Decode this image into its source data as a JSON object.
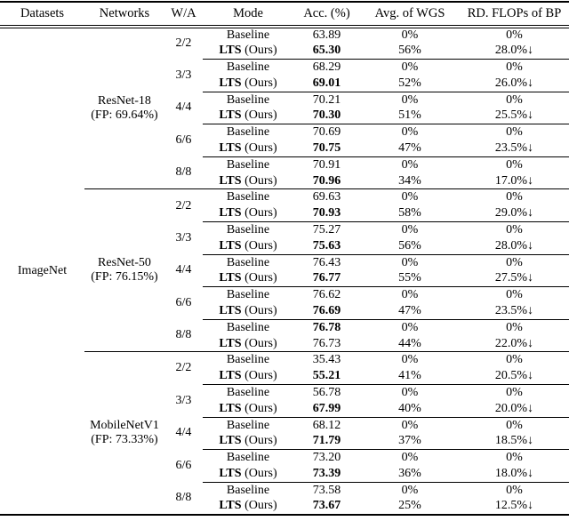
{
  "colors": {
    "background": "#ffffff",
    "text": "#000000",
    "rule": "#000000"
  },
  "table": {
    "header": [
      "Datasets",
      "Networks",
      "W/A",
      "Mode",
      "Acc. (%)",
      "Avg. of WGS",
      "RD. FLOPs of BP"
    ],
    "dataset": "ImageNet",
    "networks": [
      {
        "name": "ResNet-18",
        "fp": "(FP: 69.64%)",
        "groups": [
          {
            "wa": "2/2",
            "rows": [
              {
                "mode_bold": "",
                "mode_rest": "Baseline",
                "acc": "63.89",
                "acc_bold": false,
                "wgs": "0%",
                "flops": "0%"
              },
              {
                "mode_bold": "LTS",
                "mode_rest": " (Ours)",
                "acc": "65.30",
                "acc_bold": true,
                "wgs": "56%",
                "flops": "28.0%↓"
              }
            ]
          },
          {
            "wa": "3/3",
            "rows": [
              {
                "mode_bold": "",
                "mode_rest": "Baseline",
                "acc": "68.29",
                "acc_bold": false,
                "wgs": "0%",
                "flops": "0%"
              },
              {
                "mode_bold": "LTS",
                "mode_rest": " (Ours)",
                "acc": "69.01",
                "acc_bold": true,
                "wgs": "52%",
                "flops": "26.0%↓"
              }
            ]
          },
          {
            "wa": "4/4",
            "rows": [
              {
                "mode_bold": "",
                "mode_rest": "Baseline",
                "acc": "70.21",
                "acc_bold": false,
                "wgs": "0%",
                "flops": "0%"
              },
              {
                "mode_bold": "LTS",
                "mode_rest": " (Ours)",
                "acc": "70.30",
                "acc_bold": true,
                "wgs": "51%",
                "flops": "25.5%↓"
              }
            ]
          },
          {
            "wa": "6/6",
            "rows": [
              {
                "mode_bold": "",
                "mode_rest": "Baseline",
                "acc": "70.69",
                "acc_bold": false,
                "wgs": "0%",
                "flops": "0%"
              },
              {
                "mode_bold": "LTS",
                "mode_rest": " (Ours)",
                "acc": "70.75",
                "acc_bold": true,
                "wgs": "47%",
                "flops": "23.5%↓"
              }
            ]
          },
          {
            "wa": "8/8",
            "rows": [
              {
                "mode_bold": "",
                "mode_rest": "Baseline",
                "acc": "70.91",
                "acc_bold": false,
                "wgs": "0%",
                "flops": "0%"
              },
              {
                "mode_bold": "LTS",
                "mode_rest": " (Ours)",
                "acc": "70.96",
                "acc_bold": true,
                "wgs": "34%",
                "flops": "17.0%↓"
              }
            ]
          }
        ]
      },
      {
        "name": "ResNet-50",
        "fp": "(FP: 76.15%)",
        "groups": [
          {
            "wa": "2/2",
            "rows": [
              {
                "mode_bold": "",
                "mode_rest": "Baseline",
                "acc": "69.63",
                "acc_bold": false,
                "wgs": "0%",
                "flops": "0%"
              },
              {
                "mode_bold": "LTS",
                "mode_rest": " (Ours)",
                "acc": "70.93",
                "acc_bold": true,
                "wgs": "58%",
                "flops": "29.0%↓"
              }
            ]
          },
          {
            "wa": "3/3",
            "rows": [
              {
                "mode_bold": "",
                "mode_rest": "Baseline",
                "acc": "75.27",
                "acc_bold": false,
                "wgs": "0%",
                "flops": "0%"
              },
              {
                "mode_bold": "LTS",
                "mode_rest": " (Ours)",
                "acc": "75.63",
                "acc_bold": true,
                "wgs": "56%",
                "flops": "28.0%↓"
              }
            ]
          },
          {
            "wa": "4/4",
            "rows": [
              {
                "mode_bold": "",
                "mode_rest": "Baseline",
                "acc": "76.43",
                "acc_bold": false,
                "wgs": "0%",
                "flops": "0%"
              },
              {
                "mode_bold": "LTS",
                "mode_rest": " (Ours)",
                "acc": "76.77",
                "acc_bold": true,
                "wgs": "55%",
                "flops": "27.5%↓"
              }
            ]
          },
          {
            "wa": "6/6",
            "rows": [
              {
                "mode_bold": "",
                "mode_rest": "Baseline",
                "acc": "76.62",
                "acc_bold": false,
                "wgs": "0%",
                "flops": "0%"
              },
              {
                "mode_bold": "LTS",
                "mode_rest": " (Ours)",
                "acc": "76.69",
                "acc_bold": true,
                "wgs": "47%",
                "flops": "23.5%↓"
              }
            ]
          },
          {
            "wa": "8/8",
            "rows": [
              {
                "mode_bold": "",
                "mode_rest": "Baseline",
                "acc": "76.78",
                "acc_bold": true,
                "wgs": "0%",
                "flops": "0%"
              },
              {
                "mode_bold": "LTS",
                "mode_rest": " (Ours)",
                "acc": "76.73",
                "acc_bold": false,
                "wgs": "44%",
                "flops": "22.0%↓"
              }
            ]
          }
        ]
      },
      {
        "name": "MobileNetV1",
        "fp": "(FP: 73.33%)",
        "groups": [
          {
            "wa": "2/2",
            "rows": [
              {
                "mode_bold": "",
                "mode_rest": "Baseline",
                "acc": "35.43",
                "acc_bold": false,
                "wgs": "0%",
                "flops": "0%"
              },
              {
                "mode_bold": "LTS",
                "mode_rest": " (Ours)",
                "acc": "55.21",
                "acc_bold": true,
                "wgs": "41%",
                "flops": "20.5%↓"
              }
            ]
          },
          {
            "wa": "3/3",
            "rows": [
              {
                "mode_bold": "",
                "mode_rest": "Baseline",
                "acc": "56.78",
                "acc_bold": false,
                "wgs": "0%",
                "flops": "0%"
              },
              {
                "mode_bold": "LTS",
                "mode_rest": " (Ours)",
                "acc": "67.99",
                "acc_bold": true,
                "wgs": "40%",
                "flops": "20.0%↓"
              }
            ]
          },
          {
            "wa": "4/4",
            "rows": [
              {
                "mode_bold": "",
                "mode_rest": "Baseline",
                "acc": "68.12",
                "acc_bold": false,
                "wgs": "0%",
                "flops": "0%"
              },
              {
                "mode_bold": "LTS",
                "mode_rest": " (Ours)",
                "acc": "71.79",
                "acc_bold": true,
                "wgs": "37%",
                "flops": "18.5%↓"
              }
            ]
          },
          {
            "wa": "6/6",
            "rows": [
              {
                "mode_bold": "",
                "mode_rest": "Baseline",
                "acc": "73.20",
                "acc_bold": false,
                "wgs": "0%",
                "flops": "0%"
              },
              {
                "mode_bold": "LTS",
                "mode_rest": " (Ours)",
                "acc": "73.39",
                "acc_bold": true,
                "wgs": "36%",
                "flops": "18.0%↓"
              }
            ]
          },
          {
            "wa": "8/8",
            "rows": [
              {
                "mode_bold": "",
                "mode_rest": "Baseline",
                "acc": "73.58",
                "acc_bold": false,
                "wgs": "0%",
                "flops": "0%"
              },
              {
                "mode_bold": "LTS",
                "mode_rest": " (Ours)",
                "acc": "73.67",
                "acc_bold": true,
                "wgs": "25%",
                "flops": "12.5%↓"
              }
            ]
          }
        ]
      }
    ]
  }
}
